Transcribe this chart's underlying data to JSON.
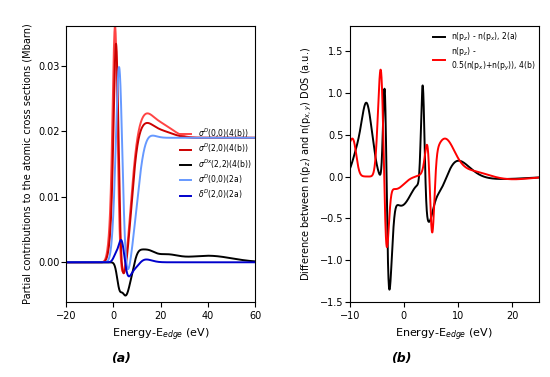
{
  "panel_a": {
    "xlim": [
      -20,
      60
    ],
    "ylim": [
      -0.006,
      0.036
    ],
    "xlabel": "Energy-E$_{edge}$ (eV)",
    "ylabel": "Partial contributions to the atomic cross sections (Mbarn)",
    "yticks": [
      0.0,
      0.01,
      0.02,
      0.03
    ],
    "xticks": [
      -20,
      0,
      20,
      40,
      60
    ],
    "colors": [
      "#ff4444",
      "#cc0000",
      "#000000",
      "#6699ff",
      "#0000cc"
    ],
    "linewidths": [
      1.4,
      1.4,
      1.4,
      1.4,
      1.4
    ]
  },
  "panel_b": {
    "xlim": [
      -10,
      25
    ],
    "ylim": [
      -1.5,
      1.8
    ],
    "xlabel": "Energy-E$_{edge}$ (eV)",
    "ylabel": "Difference between n(p$_z$) and n(p$_{x,y}$) DOS (a.u.)",
    "yticks": [
      -1.5,
      -1.0,
      -0.5,
      0.0,
      0.5,
      1.0,
      1.5
    ],
    "xticks": [
      -10,
      0,
      10,
      20
    ],
    "colors": [
      "#000000",
      "#ff0000"
    ],
    "linewidths": [
      1.4,
      1.4
    ]
  },
  "label_a": "(a)",
  "label_b": "(b)",
  "background": "#ffffff"
}
